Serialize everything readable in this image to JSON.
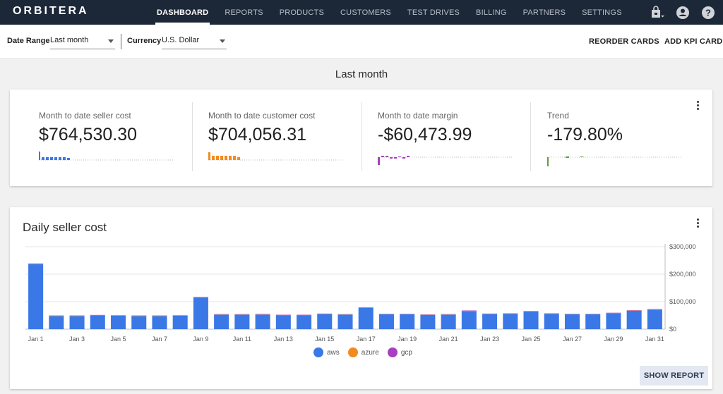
{
  "app": {
    "logo": "ORBITERA"
  },
  "nav": {
    "items": [
      {
        "label": "DASHBOARD",
        "active": true
      },
      {
        "label": "REPORTS",
        "active": false
      },
      {
        "label": "PRODUCTS",
        "active": false
      },
      {
        "label": "CUSTOMERS",
        "active": false
      },
      {
        "label": "TEST DRIVES",
        "active": false
      },
      {
        "label": "BILLING",
        "active": false
      },
      {
        "label": "PARTNERS",
        "active": false
      },
      {
        "label": "SETTINGS",
        "active": false
      }
    ],
    "icons": [
      "store-icon",
      "account-circle-icon",
      "help-icon"
    ]
  },
  "filters": {
    "date_range_label": "Date Range",
    "date_range_value": "Last month",
    "currency_label": "Currency",
    "currency_value": "U.S. Dollar",
    "reorder_label": "REORDER CARDS",
    "add_kpi_label": "ADD KPI CARD"
  },
  "period_title": "Last month",
  "kpis": [
    {
      "label": "Month to date seller cost",
      "value": "$764,530.30",
      "color": "#3b78e7"
    },
    {
      "label": "Month to date customer cost",
      "value": "$704,056.31",
      "color": "#f28b1f"
    },
    {
      "label": "Month to date margin",
      "value": "-$60,473.99",
      "color": "#a83fbf"
    },
    {
      "label": "Trend",
      "value": "-179.80%",
      "color": "#5f9e3a"
    }
  ],
  "daily_chart": {
    "title": "Daily seller cost",
    "show_report_label": "SHOW REPORT",
    "legend": [
      {
        "name": "aws",
        "color": "#3b78e7"
      },
      {
        "name": "azure",
        "color": "#f28b1f"
      },
      {
        "name": "gcp",
        "color": "#a83fbf"
      }
    ]
  },
  "chart_data": {
    "type": "bar",
    "title": "Daily seller cost",
    "xlabel": "",
    "ylabel": "",
    "ylim": [
      0,
      300000
    ],
    "yticks": [
      "$0",
      "$100,000",
      "$200,000",
      "$300,000"
    ],
    "ytick_values": [
      0,
      100000,
      200000,
      300000
    ],
    "y_axis_side": "right",
    "grid": true,
    "legend_position": "bottom",
    "stacked": true,
    "categories": [
      "Jan 1",
      "Jan 2",
      "Jan 3",
      "Jan 4",
      "Jan 5",
      "Jan 6",
      "Jan 7",
      "Jan 8",
      "Jan 9",
      "Jan 10",
      "Jan 11",
      "Jan 12",
      "Jan 13",
      "Jan 14",
      "Jan 15",
      "Jan 16",
      "Jan 17",
      "Jan 18",
      "Jan 19",
      "Jan 20",
      "Jan 21",
      "Jan 22",
      "Jan 23",
      "Jan 24",
      "Jan 25",
      "Jan 26",
      "Jan 27",
      "Jan 28",
      "Jan 29",
      "Jan 30",
      "Jan 31"
    ],
    "tick_labels": [
      "Jan 1",
      "Jan 3",
      "Jan 5",
      "Jan 7",
      "Jan 9",
      "Jan 11",
      "Jan 13",
      "Jan 15",
      "Jan 17",
      "Jan 19",
      "Jan 21",
      "Jan 23",
      "Jan 25",
      "Jan 27",
      "Jan 29",
      "Jan 31"
    ],
    "series": [
      {
        "name": "aws",
        "color": "#3b78e7",
        "values": [
          237000,
          48000,
          48000,
          50000,
          49000,
          48000,
          48000,
          49000,
          115000,
          53000,
          53000,
          53000,
          51000,
          51000,
          55000,
          53000,
          77000,
          54000,
          54000,
          52000,
          53000,
          66000,
          55000,
          56000,
          64000,
          56000,
          54000,
          54000,
          58000,
          67000,
          71000
        ]
      },
      {
        "name": "azure",
        "color": "#f28b1f",
        "values": [
          800,
          700,
          700,
          700,
          700,
          700,
          700,
          700,
          900,
          700,
          700,
          700,
          700,
          700,
          700,
          700,
          800,
          700,
          700,
          700,
          700,
          800,
          700,
          700,
          800,
          700,
          700,
          700,
          700,
          800,
          800
        ]
      },
      {
        "name": "gcp",
        "color": "#a83fbf",
        "values": [
          1200,
          1000,
          1000,
          1000,
          1000,
          1000,
          1000,
          1000,
          1500,
          1000,
          1000,
          1500,
          1000,
          1000,
          1000,
          1000,
          1500,
          1000,
          1000,
          1000,
          1000,
          1200,
          1000,
          1000,
          1200,
          1000,
          1000,
          1000,
          1000,
          1200,
          1200
        ]
      }
    ]
  }
}
